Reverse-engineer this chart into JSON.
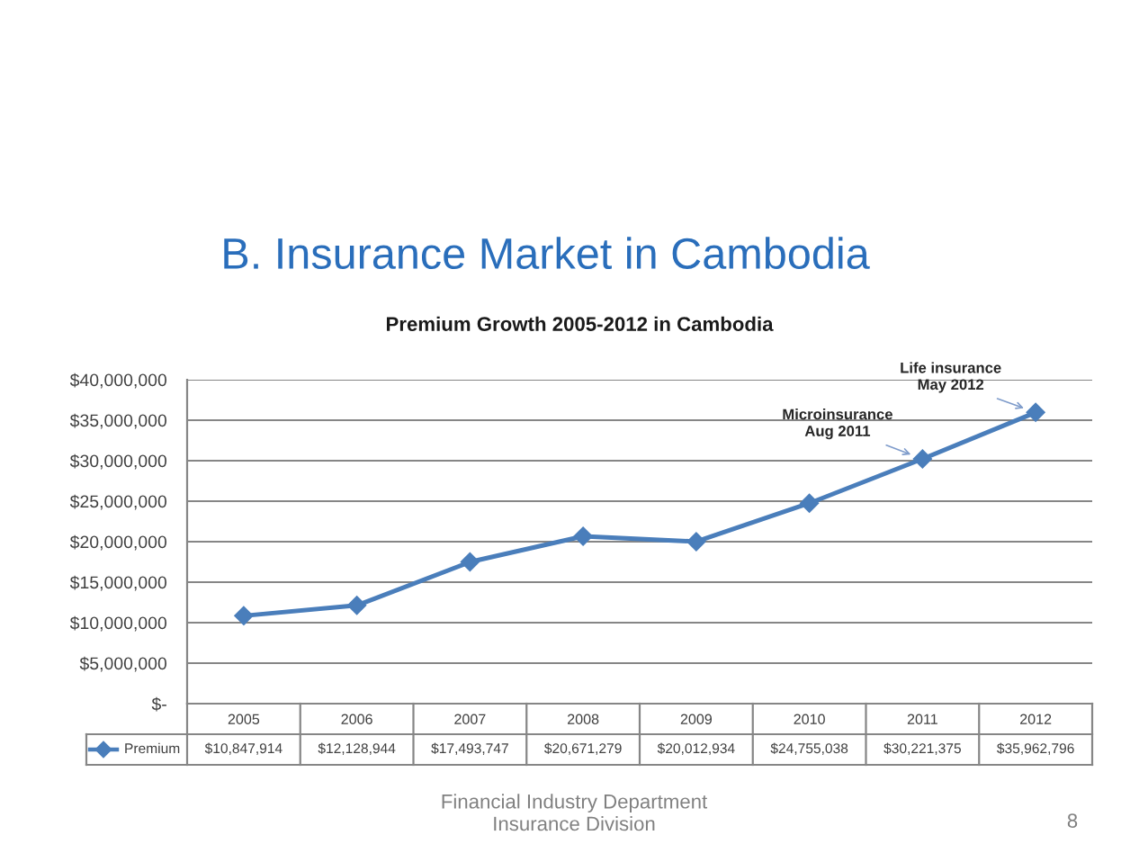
{
  "chart_data": {
    "type": "line",
    "title": "B. Insurance Market in Cambodia",
    "subtitle": "Premium Growth 2005-2012 in Cambodia",
    "categories": [
      "2005",
      "2006",
      "2007",
      "2008",
      "2009",
      "2010",
      "2011",
      "2012"
    ],
    "series": [
      {
        "name": "Premium",
        "color": "#4a7ebb",
        "values": [
          10847914,
          12128944,
          17493747,
          20671279,
          20012934,
          24755038,
          30221375,
          35962796
        ],
        "value_labels": [
          "$10,847,914",
          "$12,128,944",
          "$17,493,747",
          "$20,671,279",
          "$20,012,934",
          "$24,755,038",
          "$30,221,375",
          "$35,962,796"
        ]
      }
    ],
    "ylim": [
      0,
      40000000
    ],
    "yticks": [
      {
        "value": 0,
        "label": "$-"
      },
      {
        "value": 5000000,
        "label": "$5,000,000"
      },
      {
        "value": 10000000,
        "label": "$10,000,000"
      },
      {
        "value": 15000000,
        "label": "$15,000,000"
      },
      {
        "value": 20000000,
        "label": "$20,000,000"
      },
      {
        "value": 25000000,
        "label": "$25,000,000"
      },
      {
        "value": 30000000,
        "label": "$30,000,000"
      },
      {
        "value": 35000000,
        "label": "$35,000,000"
      },
      {
        "value": 40000000,
        "label": "$40,000,000"
      }
    ],
    "grid": "y",
    "legend": "bottom",
    "marker": "diamond",
    "line_style": "solid",
    "annotations": [
      {
        "text": "Microinsurance\nAug 2011",
        "x": "2011",
        "y": 30221375
      },
      {
        "text": "Life insurance\nMay 2012",
        "x": "2012",
        "y": 35962796
      },
      "Financial Industry Department\nInsurance Division",
      "8"
    ]
  }
}
